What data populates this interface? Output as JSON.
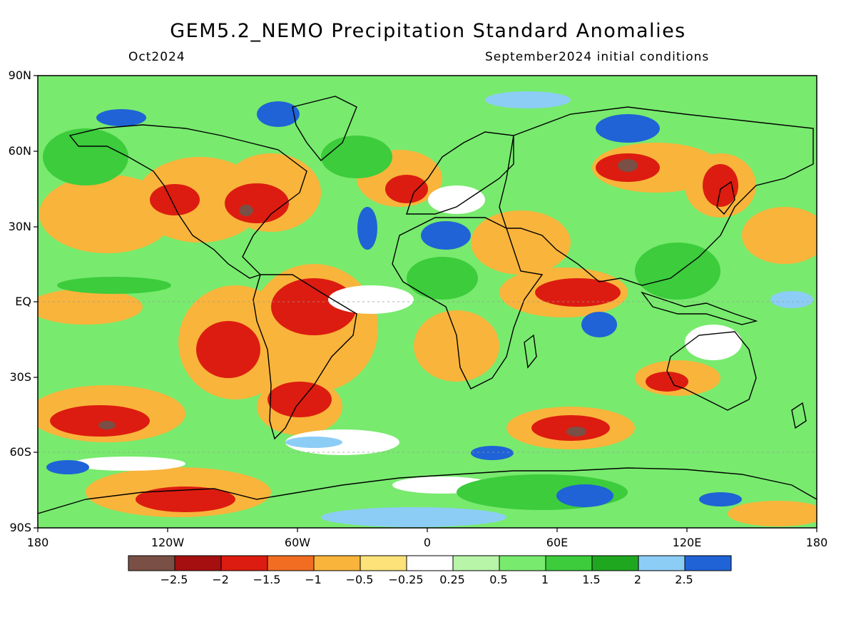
{
  "title": "GEM5.2_NEMO Precipitation Standard Anomalies",
  "subtitle_left": "Oct2024",
  "subtitle_right": "September2024 initial conditions",
  "lat_labels": [
    "90N",
    "60N",
    "30N",
    "EQ",
    "30S",
    "60S",
    "90S"
  ],
  "lon_labels": [
    "180",
    "120W",
    "60W",
    "0",
    "60E",
    "120E",
    "180"
  ],
  "colorbar": {
    "colors": [
      "#7a4f45",
      "#a50f0f",
      "#dc1c10",
      "#f26c22",
      "#f9b43b",
      "#fde27a",
      "#ffffff",
      "#b8f5a8",
      "#78ea6e",
      "#3ccc3c",
      "#1fa81f",
      "#8ccdf6",
      "#1f63d6"
    ],
    "labels": [
      "-2.5",
      "-2",
      "-1.5",
      "-1",
      "-0.5",
      "-0.25",
      "0.25",
      "0.5",
      "1",
      "1.5",
      "2",
      "2.5"
    ]
  }
}
